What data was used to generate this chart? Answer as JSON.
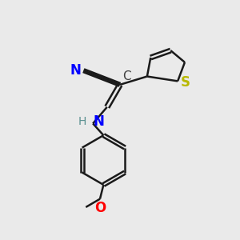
{
  "background_color": "#eaeaea",
  "bond_color": "#1a1a1a",
  "N_color": "#0000ff",
  "S_color": "#b8b800",
  "O_color": "#ff0000",
  "C_color": "#404040",
  "H_color": "#5a9090",
  "bond_width": 1.8,
  "font_size": 11,
  "label_N": "N",
  "label_H": "H",
  "label_S": "S",
  "label_O": "O",
  "label_C": "C"
}
